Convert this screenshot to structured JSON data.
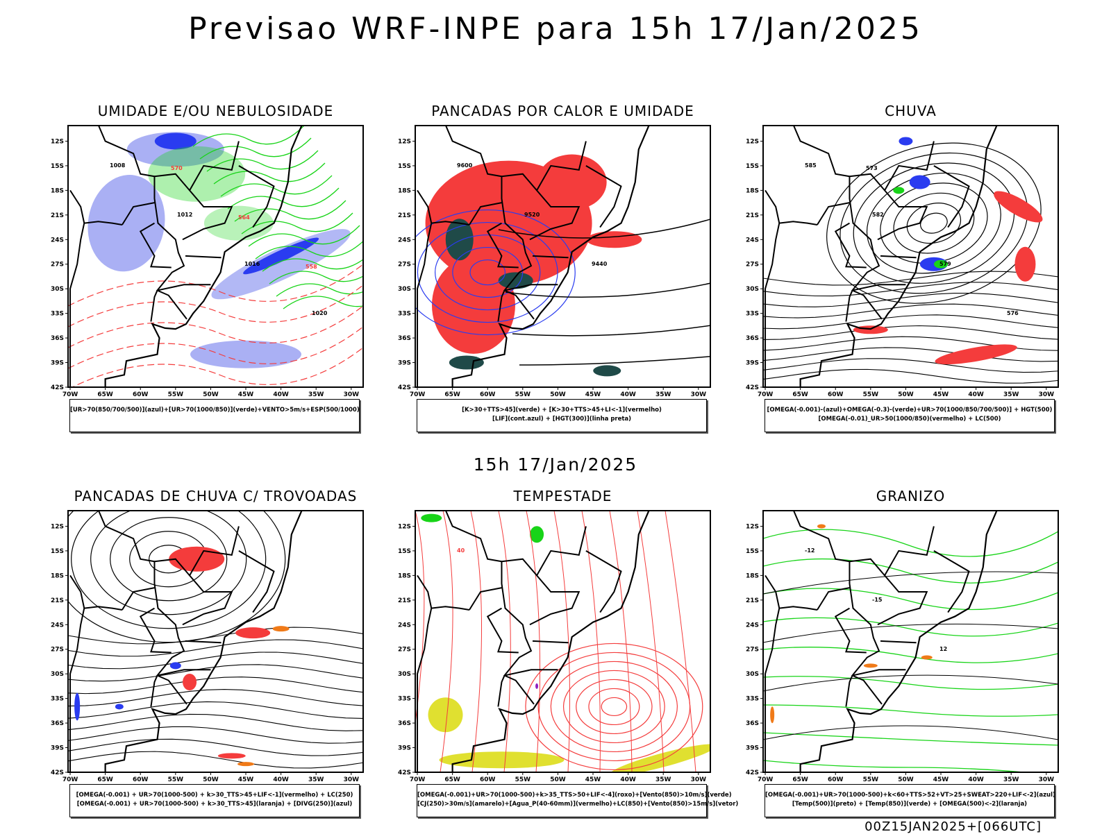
{
  "header": {
    "title": "Previsao WRF-INPE  para 15h 17/Jan/2025"
  },
  "mid_label": "15h 17/Jan/2025",
  "footer": "00Z15JAN2025+[066UTC]",
  "axes": {
    "lat_ticks": [
      "12S",
      "15S",
      "18S",
      "21S",
      "24S",
      "27S",
      "30S",
      "33S",
      "36S",
      "39S",
      "42S"
    ],
    "lon_ticks": [
      "70W",
      "65W",
      "60W",
      "55W",
      "50W",
      "45W",
      "40W",
      "35W",
      "30W"
    ]
  },
  "colors": {
    "red": "#f43c3c",
    "blue": "#2a3cf0",
    "green": "#18d418",
    "lightblue": "#aab0f4",
    "darkteal": "#1f4a48",
    "orange": "#f07a18",
    "yellow": "#e0e030",
    "purple": "#9020c0"
  },
  "panels": [
    {
      "title": "UMIDADE E/OU NEBULOSIDADE",
      "caption": [
        "[UR>70(850/700/500)](azul)+[UR>70(1000/850)](verde)+VENTO>5m/s+ESP(500/1000)"
      ],
      "contour_labels": [
        "1008",
        "1012",
        "1016",
        "1020",
        "570",
        "564",
        "558"
      ]
    },
    {
      "title": "PANCADAS POR CALOR E UMIDADE",
      "caption": [
        "[K>30+TTS>45](verde) + [K>30+TTS>45+LI<-1](vermelho)",
        "[LIF](cont.azul) + [HGT(300)](linha preta)"
      ],
      "contour_labels": [
        "9600",
        "9520",
        "9440"
      ]
    },
    {
      "title": "CHUVA",
      "caption": [
        "[OMEGA(-0.001)-(azul)+OMEGA(-0.3)-(verde)+UR>70(1000/850/700/500)] + HGT(500)",
        "[OMEGA(-0.01)_UR>50(1000/850)(vermelho) + LC(500)"
      ],
      "contour_labels": [
        "585",
        "582",
        "579",
        "576",
        "573"
      ]
    },
    {
      "title": "PANCADAS DE CHUVA C/ TROVOADAS",
      "caption": [
        "[OMEGA(-0.001) + UR>70(1000-500) + k>30_TTS>45+LIF<-1](vermelho) + LC(250)",
        "[OMEGA(-0.001) + UR>70(1000-500) + k>30_TTS>45](laranja) + [DIVG(250)](azul)"
      ],
      "contour_labels": []
    },
    {
      "title": "TEMPESTADE",
      "caption": [
        "[OMEGA(-0.001)+UR>70(1000-500)+k>35_TTS>50+LIF<-4](roxo)+[Vento(850)>10m/s](verde)",
        "[CJ(250)>30m/s](amarelo)+[Agua_P(40-60mm)](vermelho)+LC(850)+[Vento(850)>15m/s](vetor)"
      ],
      "contour_labels": [
        "40"
      ]
    },
    {
      "title": "GRANIZO",
      "caption": [
        "[OMEGA(-0.001)+UR>70(1000-500)+k<60+TTS>52+VT>25+SWEAT>220+LIF<-2](azul)",
        "[Temp(500)](preto) + [Temp(850)](verde) + [OMEGA(500)<-2](laranja)"
      ],
      "contour_labels": [
        "-12",
        "-15",
        "12"
      ]
    }
  ]
}
